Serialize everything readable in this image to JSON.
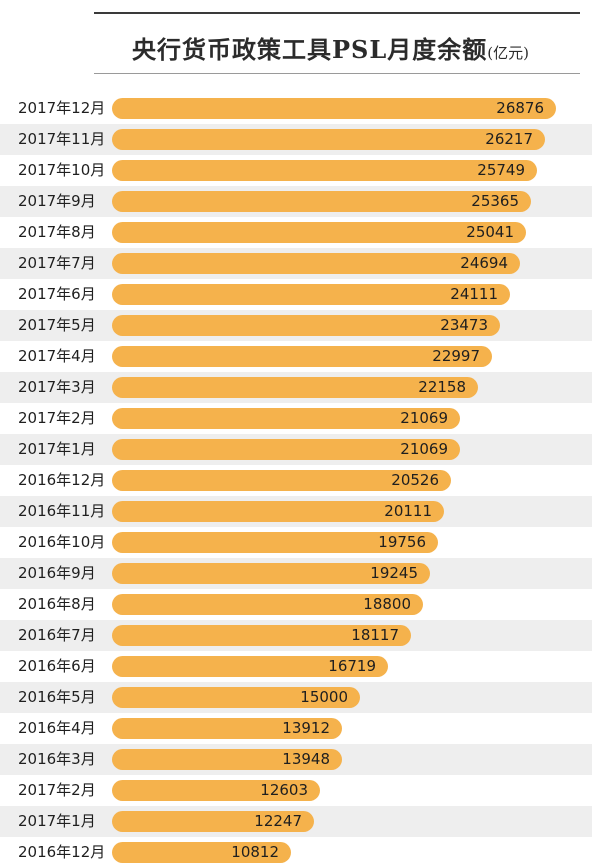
{
  "title": "央行货币政策工具PSL月度余额",
  "unit": "(亿元)",
  "colors": {
    "bar": "#f5b24c",
    "row_shade": "#eeeeee",
    "text": "#1f1f1f"
  },
  "chart_data": {
    "type": "bar",
    "orientation": "horizontal",
    "title": "央行货币政策工具PSL月度余额",
    "unit": "(亿元)",
    "categories": [
      "2017年12月",
      "2017年11月",
      "2017年10月",
      "2017年9月",
      "2017年8月",
      "2017年7月",
      "2017年6月",
      "2017年5月",
      "2017年4月",
      "2017年3月",
      "2017年2月",
      "2017年1月",
      "2016年12月",
      "2016年11月",
      "2016年10月",
      "2016年9月",
      "2016年8月",
      "2016年7月",
      "2016年6月",
      "2016年5月",
      "2016年4月",
      "2016年3月",
      "2017年2月",
      "2017年1月",
      "2016年12月"
    ],
    "values": [
      26876,
      26217,
      25749,
      25365,
      25041,
      24694,
      24111,
      23473,
      22997,
      22158,
      21069,
      21069,
      20526,
      20111,
      19756,
      19245,
      18800,
      18117,
      16719,
      15000,
      13912,
      13948,
      12603,
      12247,
      10812
    ],
    "xlim": [
      0,
      27000
    ],
    "grid": false,
    "legend": "none"
  }
}
